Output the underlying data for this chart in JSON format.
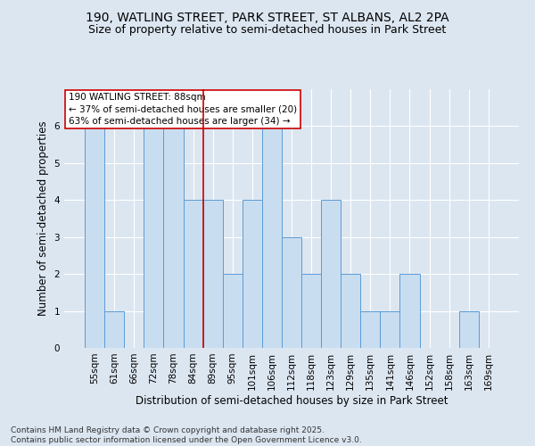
{
  "title_line1": "190, WATLING STREET, PARK STREET, ST ALBANS, AL2 2PA",
  "title_line2": "Size of property relative to semi-detached houses in Park Street",
  "xlabel": "Distribution of semi-detached houses by size in Park Street",
  "ylabel": "Number of semi-detached properties",
  "categories": [
    "55sqm",
    "61sqm",
    "66sqm",
    "72sqm",
    "78sqm",
    "84sqm",
    "89sqm",
    "95sqm",
    "101sqm",
    "106sqm",
    "112sqm",
    "118sqm",
    "123sqm",
    "129sqm",
    "135sqm",
    "141sqm",
    "146sqm",
    "152sqm",
    "158sqm",
    "163sqm",
    "169sqm"
  ],
  "values": [
    6,
    1,
    0,
    6,
    6,
    4,
    4,
    2,
    4,
    6,
    3,
    2,
    4,
    2,
    1,
    1,
    2,
    0,
    0,
    1,
    0
  ],
  "bar_color": "#c9ddf0",
  "bar_edge_color": "#5b9bd5",
  "highlight_line_index": 6,
  "annotation_title": "190 WATLING STREET: 88sqm",
  "annotation_line1": "← 37% of semi-detached houses are smaller (20)",
  "annotation_line2": "63% of semi-detached houses are larger (34) →",
  "annotation_box_color": "#ffffff",
  "annotation_box_edge": "#cc0000",
  "vline_color": "#cc0000",
  "ylim": [
    0,
    7
  ],
  "yticks": [
    0,
    1,
    2,
    3,
    4,
    5,
    6,
    7
  ],
  "footer_line1": "Contains HM Land Registry data © Crown copyright and database right 2025.",
  "footer_line2": "Contains public sector information licensed under the Open Government Licence v3.0.",
  "background_color": "#dce6f1",
  "plot_background": "#dce6f1",
  "title_fontsize": 10,
  "subtitle_fontsize": 9,
  "axis_label_fontsize": 8.5,
  "tick_fontsize": 7.5,
  "annotation_fontsize": 7.5,
  "footer_fontsize": 6.5
}
